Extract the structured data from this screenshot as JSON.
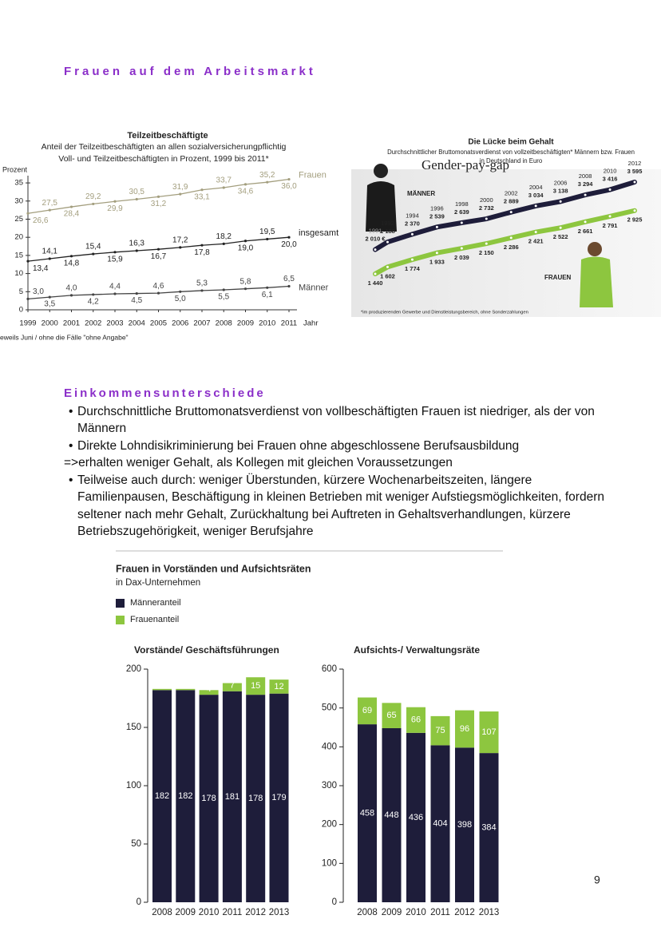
{
  "title": "Frauen auf dem Arbeitsmarkt",
  "chart_data": [
    {
      "type": "line",
      "title": "Teilzeitbeschäftigte",
      "subtitle": [
        "Anteil der Teilzeitbeschäftigten an allen sozialversicherungpflichtig",
        "Voll- und Teilzeitbeschäftigten in Prozent, 1999 bis 2011*"
      ],
      "y_label": "Prozent",
      "x_label": "Jahr",
      "categories": [
        "1999",
        "2000",
        "2001",
        "2002",
        "2003",
        "2004",
        "2005",
        "2006",
        "2007",
        "2008",
        "2009",
        "2010",
        "2011"
      ],
      "ylim": [
        0,
        37
      ],
      "yticks": [
        0,
        5,
        10,
        15,
        20,
        25,
        30,
        35
      ],
      "series": [
        {
          "name": "Frauen",
          "color": "#a39e7e",
          "values": [
            26.6,
            27.5,
            28.4,
            29.2,
            29.9,
            30.5,
            31.2,
            31.9,
            33.1,
            33.7,
            34.6,
            35.2,
            36.0
          ],
          "value_labels": [
            "26,6",
            "27,5",
            "28,4",
            "29,2",
            "29,9",
            "30,5",
            "31,2",
            "31,9",
            "33,1",
            "33,7",
            "34,6",
            "35,2",
            "36,0"
          ]
        },
        {
          "name": "insgesamt",
          "color": "#222222",
          "values": [
            13.4,
            14.1,
            14.8,
            15.4,
            15.9,
            16.3,
            16.7,
            17.2,
            17.8,
            18.2,
            19.0,
            19.5,
            20.0
          ],
          "value_labels": [
            "13,4",
            "14,1",
            "14,8",
            "15,4",
            "15,9",
            "16,3",
            "16,7",
            "17,2",
            "17,8",
            "18,2",
            "19,0",
            "19,5",
            "20,0"
          ]
        },
        {
          "name": "Männer",
          "color": "#444444",
          "values": [
            3.0,
            3.5,
            4.0,
            4.2,
            4.4,
            4.5,
            4.6,
            5.0,
            5.3,
            5.5,
            5.8,
            6.1,
            6.5
          ],
          "value_labels": [
            "3,0",
            "3,5",
            "4,0",
            "4,2",
            "4,4",
            "4,5",
            "4,6",
            "5,0",
            "5,3",
            "5,5",
            "5,8",
            "6,1",
            "6,5"
          ]
        }
      ],
      "footnote": "eweils Juni / ohne die Fälle \"ohne Angabe\""
    },
    {
      "type": "line",
      "title": "Die Lücke beim Gehalt",
      "subtitle": [
        "Durchschnittlicher Bruttomonatsverdienst von vollzeitbeschäftigten* Männern bzw. Frauen",
        "in Deutschland in Euro"
      ],
      "annotation": "Gender-pay-gap",
      "x": [
        1991,
        1992,
        1994,
        1996,
        1998,
        2000,
        2002,
        2004,
        2006,
        2008,
        2010,
        2012
      ],
      "series": [
        {
          "name": "MÄNNER",
          "color": "#1e1d3a",
          "values": [
            2010,
            2188,
            2370,
            2539,
            2639,
            2732,
            2889,
            3034,
            3138,
            3294,
            3416,
            3595
          ],
          "value_labels": [
            "2 010 €",
            "2 188",
            "2 370",
            "2 539",
            "2 639",
            "2 732",
            "2 889",
            "3 034",
            "3 138",
            "3 294",
            "3 416",
            "3 595"
          ]
        },
        {
          "name": "FRAUEN",
          "color": "#8dc63f",
          "values": [
            1440,
            1602,
            1774,
            1933,
            2039,
            2150,
            2286,
            2421,
            2522,
            2661,
            2791,
            2925
          ],
          "value_labels": [
            "1 440",
            "1 602",
            "1 774",
            "1 933",
            "2 039",
            "2 150",
            "2 286",
            "2 421",
            "2 522",
            "2 661",
            "2 791",
            "2 925"
          ]
        }
      ],
      "footnote": "*im produzierenden Gewerbe und Dienstleistungsbereich, ohne Sonderzahlungen"
    },
    {
      "type": "stacked_bar",
      "title": "Vorstände/ Geschäftsführungen",
      "categories": [
        "2008",
        "2009",
        "2010",
        "2011",
        "2012",
        "2013"
      ],
      "ylim": [
        0,
        200
      ],
      "yticks": [
        0,
        50,
        100,
        150,
        200
      ],
      "series": [
        {
          "name": "Männeranteil",
          "color": "#1e1d3a",
          "values": [
            182,
            182,
            178,
            181,
            178,
            179
          ]
        },
        {
          "name": "Frauenanteil",
          "color": "#8dc63f",
          "values": [
            1,
            1,
            4,
            7,
            15,
            12
          ]
        }
      ]
    },
    {
      "type": "stacked_bar",
      "title": "Aufsichts-/ Verwaltungsräte",
      "categories": [
        "2008",
        "2009",
        "2010",
        "2011",
        "2012",
        "2013"
      ],
      "ylim": [
        0,
        600
      ],
      "yticks": [
        0,
        100,
        200,
        300,
        400,
        500,
        600
      ],
      "series": [
        {
          "name": "Männeranteil",
          "color": "#1e1d3a",
          "values": [
            458,
            448,
            436,
            404,
            398,
            384
          ]
        },
        {
          "name": "Frauenanteil",
          "color": "#8dc63f",
          "values": [
            69,
            65,
            66,
            75,
            96,
            107
          ]
        }
      ]
    }
  ],
  "figure": {
    "title": "Frauen in Vorständen und Aufsichtsräten",
    "subtitle": "in Dax-Unternehmen"
  },
  "section": {
    "heading": "Einkommensunterschiede",
    "list": [
      {
        "bullet": "•",
        "text": "Durchschnittliche Bruttomonatsverdienst von vollbeschäftigten Frauen ist niedriger, als der von Männern"
      },
      {
        "bullet": "•",
        "text": "Direkte Lohndisikriminierung bei Frauen ohne abgeschlossene Berufsausbildung"
      },
      {
        "text": "=>erhalten weniger Gehalt, als Kollegen mit gleichen Voraussetzungen"
      },
      {
        "bullet": "•",
        "text": "Teilweise auch durch: weniger Überstunden, kürzere Wochenarbeitszeiten, längere Familienpausen, Beschäftigung in kleinen Betrieben mit weniger Aufstiegsmöglichkeiten, fordern seltener nach mehr Gehalt, Zurückhaltung bei Auftreten in Gehaltsverhandlungen, kürzere Betriebszugehörigkeit, weniger Berufsjahre"
      }
    ]
  },
  "page_number": "9"
}
